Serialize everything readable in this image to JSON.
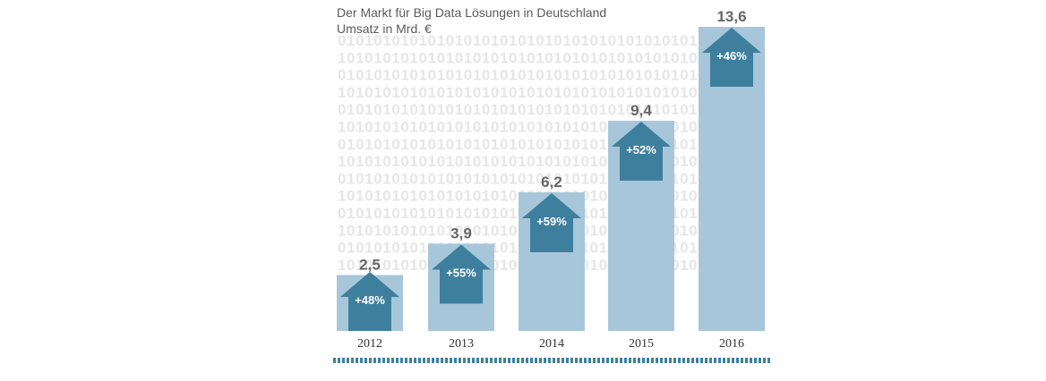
{
  "chart_data": {
    "type": "bar",
    "title": "Der Markt für Big Data Lösungen in Deutschland",
    "subtitle": "Umsatz in Mrd. €",
    "categories": [
      "2012",
      "2013",
      "2014",
      "2015",
      "2016"
    ],
    "values": [
      2.5,
      3.9,
      6.2,
      9.4,
      13.6
    ],
    "value_labels": [
      "2,5",
      "3,9",
      "6,2",
      "9,4",
      "13,6"
    ],
    "growth_labels": [
      "+48%",
      "+55%",
      "+59%",
      "+52%",
      "+46%"
    ],
    "ylim": [
      0,
      13.6
    ],
    "grid": false,
    "colors": {
      "bar": "#a7c6da",
      "arrow": "#3e7f9d",
      "value_text": "#666666",
      "binary_text": "#e6e6e6",
      "dash": "#3e7f9d"
    },
    "background_text": "0101010101010101010101010101010101010101"
  }
}
